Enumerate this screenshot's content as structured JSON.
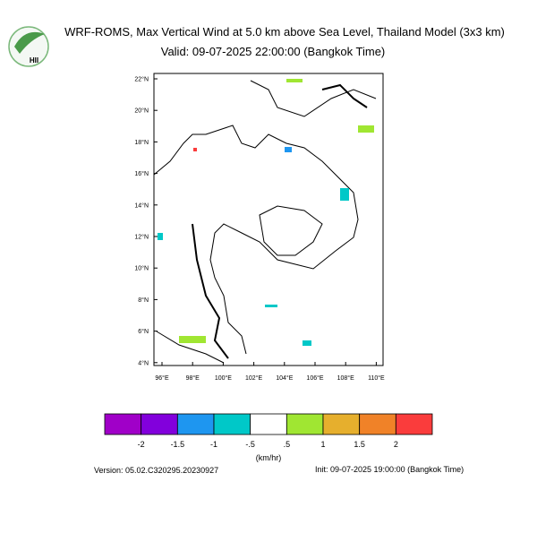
{
  "header": {
    "title": "WRF-ROMS, Max Vertical Wind at 5.0 km above Sea Level, Thailand Model (3x3 km)",
    "subtitle": "Valid: 09-07-2025 22:00:00 (Bangkok Time)"
  },
  "logo": {
    "text": "HII"
  },
  "map": {
    "lon_ticks": [
      {
        "value": 96,
        "label": "96°E"
      },
      {
        "value": 98,
        "label": "98°E"
      },
      {
        "value": 100,
        "label": "100°E"
      },
      {
        "value": 102,
        "label": "102°E"
      },
      {
        "value": 104,
        "label": "104°E"
      },
      {
        "value": 106,
        "label": "106°E"
      },
      {
        "value": 108,
        "label": "108°E"
      },
      {
        "value": 110,
        "label": "110°E"
      }
    ],
    "lat_ticks": [
      {
        "value": 22,
        "label": "22°N"
      },
      {
        "value": 20,
        "label": "20°N"
      },
      {
        "value": 18,
        "label": "18°N"
      },
      {
        "value": 16,
        "label": "16°N"
      },
      {
        "value": 14,
        "label": "14°N"
      },
      {
        "value": 12,
        "label": "12°N"
      },
      {
        "value": 10,
        "label": "10°N"
      },
      {
        "value": 8,
        "label": "8°N"
      },
      {
        "value": 6,
        "label": "6°N"
      },
      {
        "value": 4,
        "label": "4°N"
      }
    ]
  },
  "colorbar": {
    "colors": [
      "#a000c8",
      "#8200dc",
      "#1e96f0",
      "#00c8c8",
      "#ffffff",
      "#a0e632",
      "#e6af2d",
      "#f08228",
      "#fa3c3c"
    ],
    "labels": [
      "-2",
      "-1.5",
      "-1",
      "-.5",
      ".5",
      "1",
      "1.5",
      "2"
    ],
    "unit": "(km/hr)"
  },
  "footer": {
    "version": "Version: 05.02.C320295.20230927",
    "init": "Init: 09-07-2025 19:00:00 (Bangkok Time)"
  }
}
